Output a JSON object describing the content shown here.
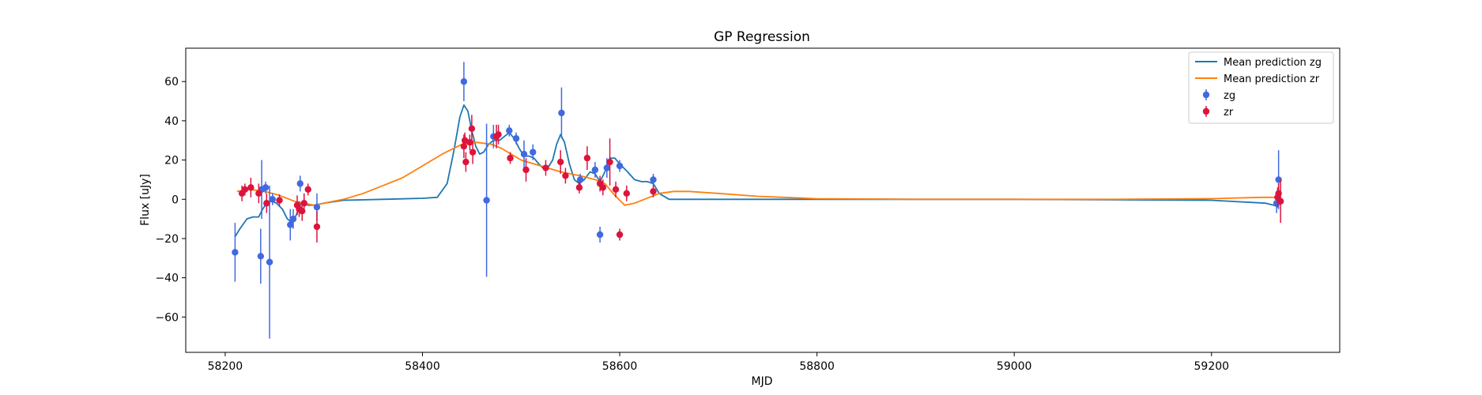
{
  "chart_data": {
    "type": "scatter",
    "title": "GP Regression",
    "xlabel": "MJD",
    "ylabel": "Flux [uJy]",
    "xlim": [
      58160,
      59330
    ],
    "ylim": [
      -78,
      77
    ],
    "xticks": [
      58200,
      58400,
      58600,
      58800,
      59000,
      59200
    ],
    "yticks": [
      -60,
      -40,
      -20,
      0,
      20,
      40,
      60
    ],
    "xtick_labels": [
      "58200",
      "58400",
      "58600",
      "58800",
      "59000",
      "59200"
    ],
    "ytick_labels": [
      "−60",
      "−40",
      "−20",
      "0",
      "20",
      "40",
      "60"
    ],
    "grid": false,
    "legend_position": "top-right",
    "colors": {
      "mean_zg": "#1f77b4",
      "mean_zr": "#ff7f0e",
      "zg": "#4169e1",
      "zr": "#dc143c"
    },
    "legend": [
      {
        "label": "Mean prediction zg",
        "kind": "line",
        "color_key": "mean_zg"
      },
      {
        "label": "Mean prediction zr",
        "kind": "line",
        "color_key": "mean_zr"
      },
      {
        "label": "zg",
        "kind": "errorbar",
        "color_key": "zg"
      },
      {
        "label": "zr",
        "kind": "errorbar",
        "color_key": "zr"
      }
    ],
    "lines": [
      {
        "name": "Mean prediction zg",
        "color_key": "mean_zg",
        "points": [
          [
            58210,
            -19
          ],
          [
            58215,
            -15
          ],
          [
            58222,
            -10
          ],
          [
            58228,
            -9
          ],
          [
            58234,
            -9
          ],
          [
            58238,
            -5
          ],
          [
            58242,
            -2
          ],
          [
            58247,
            -1
          ],
          [
            58252,
            -2
          ],
          [
            58258,
            -5
          ],
          [
            58263,
            -10
          ],
          [
            58268,
            -12
          ],
          [
            58272,
            -8
          ],
          [
            58277,
            -2
          ],
          [
            58280,
            -2
          ],
          [
            58284,
            -3
          ],
          [
            58290,
            -3
          ],
          [
            58300,
            -2
          ],
          [
            58320,
            -0.5
          ],
          [
            58360,
            0
          ],
          [
            58400,
            0.5
          ],
          [
            58415,
            1
          ],
          [
            58425,
            8
          ],
          [
            58432,
            25
          ],
          [
            58438,
            42
          ],
          [
            58442,
            48
          ],
          [
            58446,
            45
          ],
          [
            58450,
            35
          ],
          [
            58454,
            27
          ],
          [
            58458,
            23
          ],
          [
            58462,
            24
          ],
          [
            58467,
            28
          ],
          [
            58472,
            30
          ],
          [
            58478,
            30
          ],
          [
            58483,
            32
          ],
          [
            58488,
            34
          ],
          [
            58493,
            31
          ],
          [
            58498,
            26
          ],
          [
            58503,
            22
          ],
          [
            58508,
            22
          ],
          [
            58513,
            21
          ],
          [
            58518,
            18
          ],
          [
            58522,
            16
          ],
          [
            58527,
            16
          ],
          [
            58532,
            20
          ],
          [
            58536,
            28
          ],
          [
            58540,
            33
          ],
          [
            58544,
            29
          ],
          [
            58549,
            18
          ],
          [
            58554,
            10
          ],
          [
            58559,
            8
          ],
          [
            58564,
            10
          ],
          [
            58570,
            14
          ],
          [
            58575,
            13
          ],
          [
            58580,
            9
          ],
          [
            58585,
            14
          ],
          [
            58590,
            21
          ],
          [
            58595,
            21
          ],
          [
            58600,
            18
          ],
          [
            58608,
            14
          ],
          [
            58615,
            10
          ],
          [
            58622,
            9
          ],
          [
            58628,
            9
          ],
          [
            58634,
            8
          ],
          [
            58640,
            3
          ],
          [
            58650,
            0
          ],
          [
            58700,
            0
          ],
          [
            58800,
            0
          ],
          [
            59000,
            0
          ],
          [
            59200,
            -0.5
          ],
          [
            59255,
            -2
          ],
          [
            59263,
            -3
          ],
          [
            59268,
            -4
          ]
        ]
      },
      {
        "name": "Mean prediction zr",
        "color_key": "mean_zr",
        "points": [
          [
            58212,
            4
          ],
          [
            58225,
            5
          ],
          [
            58240,
            4
          ],
          [
            58255,
            2
          ],
          [
            58270,
            -1
          ],
          [
            58280,
            -2
          ],
          [
            58290,
            -3
          ],
          [
            58300,
            -2
          ],
          [
            58320,
            0
          ],
          [
            58340,
            3
          ],
          [
            58360,
            7
          ],
          [
            58380,
            11
          ],
          [
            58400,
            17
          ],
          [
            58420,
            23
          ],
          [
            58440,
            28
          ],
          [
            58455,
            29
          ],
          [
            58470,
            28
          ],
          [
            58480,
            26
          ],
          [
            58490,
            23
          ],
          [
            58500,
            20
          ],
          [
            58520,
            17
          ],
          [
            58540,
            14
          ],
          [
            58560,
            12
          ],
          [
            58575,
            10
          ],
          [
            58585,
            8
          ],
          [
            58595,
            2
          ],
          [
            58605,
            -3
          ],
          [
            58615,
            -2
          ],
          [
            58625,
            0
          ],
          [
            58640,
            3
          ],
          [
            58655,
            4
          ],
          [
            58670,
            4
          ],
          [
            58700,
            3
          ],
          [
            58740,
            1.5
          ],
          [
            58800,
            0.3
          ],
          [
            58900,
            0
          ],
          [
            59000,
            0
          ],
          [
            59100,
            0
          ],
          [
            59200,
            0.3
          ],
          [
            59250,
            1
          ],
          [
            59268,
            1
          ]
        ]
      }
    ],
    "series": [
      {
        "name": "zg",
        "color_key": "zg",
        "points": [
          [
            58210,
            -27,
            15
          ],
          [
            58236,
            -29,
            14
          ],
          [
            58237,
            5,
            15
          ],
          [
            58241,
            6,
            3
          ],
          [
            58245,
            -32,
            39
          ],
          [
            58248,
            0,
            3
          ],
          [
            58266,
            -13,
            8
          ],
          [
            58269,
            -10,
            5
          ],
          [
            58276,
            8,
            4
          ],
          [
            58293,
            -4,
            7
          ],
          [
            58442,
            60,
            10
          ],
          [
            58465,
            -0.5,
            39
          ],
          [
            58472,
            32,
            6
          ],
          [
            58488,
            35,
            3
          ],
          [
            58495,
            31,
            3
          ],
          [
            58503,
            23,
            7
          ],
          [
            58512,
            24,
            4
          ],
          [
            58541,
            44,
            13
          ],
          [
            58560,
            10,
            3
          ],
          [
            58575,
            15,
            4
          ],
          [
            58580,
            -18,
            4
          ],
          [
            58587,
            16,
            5
          ],
          [
            58600,
            17,
            3
          ],
          [
            58634,
            10,
            3
          ],
          [
            59268,
            10,
            15
          ],
          [
            59266,
            -2,
            5
          ]
        ]
      },
      {
        "name": "zr",
        "color_key": "zr",
        "points": [
          [
            58217,
            3,
            4
          ],
          [
            58220,
            5,
            3
          ],
          [
            58226,
            6,
            5
          ],
          [
            58234,
            3,
            5
          ],
          [
            58242,
            -2,
            5
          ],
          [
            58255,
            -0.5,
            3
          ],
          [
            58273,
            -3,
            5
          ],
          [
            58275,
            -5,
            4
          ],
          [
            58278,
            -6,
            5
          ],
          [
            58280,
            -2,
            5
          ],
          [
            58284,
            5,
            3
          ],
          [
            58293,
            -14,
            8
          ],
          [
            58442,
            27,
            6
          ],
          [
            58443,
            30,
            4
          ],
          [
            58444,
            19,
            5
          ],
          [
            58448,
            29,
            4
          ],
          [
            58450,
            36,
            7
          ],
          [
            58451,
            24,
            6
          ],
          [
            58475,
            32,
            6
          ],
          [
            58477,
            33,
            5
          ],
          [
            58489,
            21,
            3
          ],
          [
            58505,
            15,
            6
          ],
          [
            58525,
            16,
            4
          ],
          [
            58540,
            19,
            6
          ],
          [
            58545,
            12,
            4
          ],
          [
            58559,
            6,
            3
          ],
          [
            58567,
            21,
            6
          ],
          [
            58580,
            8,
            4
          ],
          [
            58583,
            6,
            4
          ],
          [
            58590,
            19,
            12
          ],
          [
            58596,
            5,
            4
          ],
          [
            58600,
            -18,
            3
          ],
          [
            58607,
            3,
            4
          ],
          [
            58634,
            4,
            3
          ],
          [
            59267,
            1,
            5
          ],
          [
            59268,
            3,
            5
          ],
          [
            59270,
            -1,
            11
          ]
        ]
      }
    ]
  }
}
